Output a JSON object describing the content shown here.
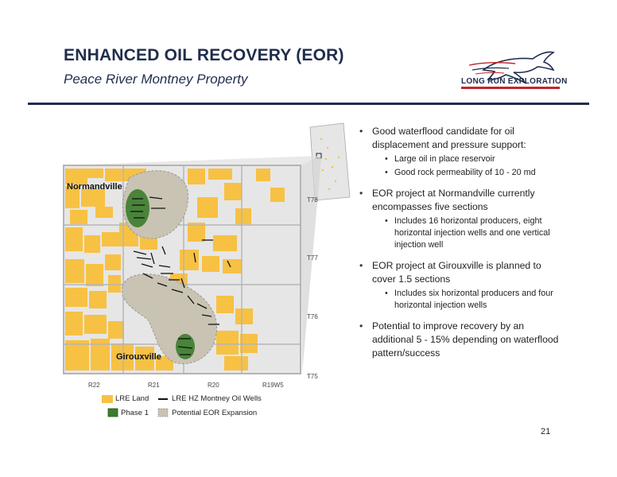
{
  "header": {
    "title": "ENHANCED OIL RECOVERY (EOR)",
    "subtitle": "Peace River Montney Property"
  },
  "logo": {
    "text": "LONG RUN EXPLORATION",
    "icon": "horse-icon",
    "colors": {
      "navy": "#1f2d4d",
      "red": "#c0262c"
    }
  },
  "map": {
    "area_labels": {
      "north": "Normandville",
      "south": "Girouxville"
    },
    "township_labels": [
      "T78",
      "T77",
      "T76",
      "T75"
    ],
    "range_labels": [
      "R22",
      "R21",
      "R20",
      "R19W5"
    ],
    "colors": {
      "land": "#f7c143",
      "phase1": "#3b7d2c",
      "expansion": "#c9c3b3",
      "grid": "#b5b5b5"
    }
  },
  "legend": {
    "land": "LRE Land",
    "wells": "LRE HZ Montney Oil Wells",
    "phase1": "Phase 1",
    "expansion": "Potential EOR Expansion"
  },
  "bullets": [
    {
      "text": "Good waterflood candidate for oil displacement and pressure support:",
      "sub": [
        "Large oil in place reservoir",
        "Good rock permeability of 10 - 20 md"
      ]
    },
    {
      "text": "EOR project at Normandville currently encompasses five sections",
      "sub": [
        "Includes 16 horizontal producers, eight horizontal injection wells and one vertical injection well"
      ]
    },
    {
      "text": "EOR project at Girouxville is planned to cover 1.5 sections",
      "sub": [
        "Includes six horizontal producers and four horizontal injection wells"
      ]
    },
    {
      "text": "Potential to improve recovery by an additional 5 - 15% depending on waterflood pattern/success",
      "sub": []
    }
  ],
  "page_number": "21"
}
